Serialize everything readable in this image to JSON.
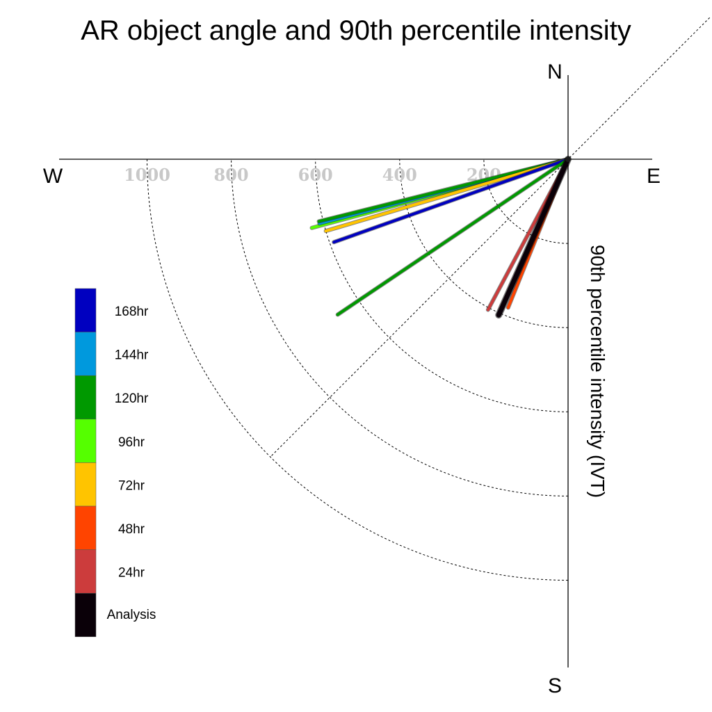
{
  "chart_data": {
    "type": "polar-vector",
    "title": "AR object angle and 90th percentile intensity",
    "ylabel": "90th percentile intensity (IVT)",
    "compass": {
      "N": "N",
      "E": "E",
      "S": "S",
      "W": "W"
    },
    "radial_ticks": [
      1000,
      800,
      600,
      400,
      200
    ],
    "rlim": [
      0,
      1200
    ],
    "colors": {
      "168hr": "#0000c0",
      "144hr": "#0099dd",
      "120hr": "#009900",
      "96hr": "#55ff00",
      "72hr": "#ffc400",
      "48hr": "#ff4400",
      "24hr": "#cc3c3c",
      "Analysis": "#0a0008"
    },
    "legend": [
      "168hr",
      "144hr",
      "120hr",
      "96hr",
      "72hr",
      "48hr",
      "24hr",
      "Analysis"
    ],
    "series": [
      {
        "name": "96hr",
        "intensity": 630,
        "direction_deg": 255
      },
      {
        "name": "144hr",
        "intensity": 610,
        "direction_deg": 255.5
      },
      {
        "name": "120hr",
        "intensity": 610,
        "direction_deg": 256
      },
      {
        "name": "72hr",
        "intensity": 600,
        "direction_deg": 253.5
      },
      {
        "name": "168hr",
        "intensity": 590,
        "direction_deg": 250.5
      },
      {
        "name": "120hr",
        "intensity": 660,
        "direction_deg": 236
      },
      {
        "name": "24hr",
        "intensity": 405,
        "direction_deg": 208
      },
      {
        "name": "48hr",
        "intensity": 380,
        "direction_deg": 202
      },
      {
        "name": "Analysis",
        "intensity": 405,
        "direction_deg": 204
      }
    ]
  }
}
